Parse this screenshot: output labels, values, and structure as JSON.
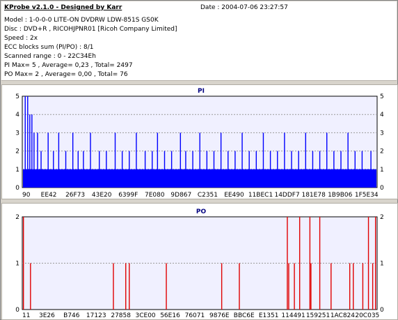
{
  "header": {
    "app_title": "KProbe v2.1.0 - Designed by Karr",
    "date": "Date : 2004-07-06 23:27:57",
    "lines": [
      "Model : 1-0-0-0 LITE-ON DVDRW LDW-851S   GS0K",
      "Disc : DVD+R , RICOHJPNR01 [Ricoh Company Limited]",
      "Speed : 2x",
      "ECC blocks sum (PI/PO) : 8/1",
      "Scanned range : 0 - 22C34Eh",
      "PI Max= 5 , Average= 0,23 , Total= 2497",
      "PO Max= 2 , Average= 0,00 , Total= 76"
    ]
  },
  "colors": {
    "pi": "#0000ff",
    "po": "#e00000",
    "plot_bg": "#f0f0ff",
    "grid": "#999999",
    "title": "#000080"
  },
  "chart_data": [
    {
      "type": "bar",
      "title": "PI",
      "ylim": [
        0,
        5
      ],
      "y_ticks": [
        "0",
        "1",
        "2",
        "3",
        "4",
        "5"
      ],
      "x_tick_labels": [
        "90",
        "EE42",
        "26F73",
        "43E20",
        "6399F",
        "7E080",
        "9D867",
        "C2351",
        "EE490",
        "11BEC1",
        "14DDF7",
        "181E78",
        "1B9B06",
        "1F5E34"
      ],
      "grid": "dashed-horizontal",
      "baseline_value": 1,
      "x_range_hex": [
        "0",
        "22C34E"
      ],
      "spikes": [
        {
          "x": 0.005,
          "v": 5
        },
        {
          "x": 0.012,
          "v": 5
        },
        {
          "x": 0.018,
          "v": 4
        },
        {
          "x": 0.024,
          "v": 4
        },
        {
          "x": 0.03,
          "v": 3
        },
        {
          "x": 0.04,
          "v": 3
        },
        {
          "x": 0.05,
          "v": 2
        },
        {
          "x": 0.07,
          "v": 3
        },
        {
          "x": 0.085,
          "v": 2
        },
        {
          "x": 0.1,
          "v": 3
        },
        {
          "x": 0.12,
          "v": 2
        },
        {
          "x": 0.14,
          "v": 3
        },
        {
          "x": 0.155,
          "v": 2
        },
        {
          "x": 0.17,
          "v": 2
        },
        {
          "x": 0.19,
          "v": 3
        },
        {
          "x": 0.215,
          "v": 2
        },
        {
          "x": 0.235,
          "v": 2
        },
        {
          "x": 0.26,
          "v": 3
        },
        {
          "x": 0.28,
          "v": 2
        },
        {
          "x": 0.3,
          "v": 2
        },
        {
          "x": 0.32,
          "v": 3
        },
        {
          "x": 0.345,
          "v": 2
        },
        {
          "x": 0.365,
          "v": 2
        },
        {
          "x": 0.38,
          "v": 3
        },
        {
          "x": 0.4,
          "v": 2
        },
        {
          "x": 0.42,
          "v": 2
        },
        {
          "x": 0.445,
          "v": 3
        },
        {
          "x": 0.46,
          "v": 2
        },
        {
          "x": 0.48,
          "v": 2
        },
        {
          "x": 0.5,
          "v": 3
        },
        {
          "x": 0.52,
          "v": 2
        },
        {
          "x": 0.54,
          "v": 2
        },
        {
          "x": 0.56,
          "v": 3
        },
        {
          "x": 0.58,
          "v": 2
        },
        {
          "x": 0.6,
          "v": 2
        },
        {
          "x": 0.62,
          "v": 3
        },
        {
          "x": 0.64,
          "v": 2
        },
        {
          "x": 0.66,
          "v": 2
        },
        {
          "x": 0.68,
          "v": 3
        },
        {
          "x": 0.7,
          "v": 2
        },
        {
          "x": 0.72,
          "v": 2
        },
        {
          "x": 0.74,
          "v": 3
        },
        {
          "x": 0.76,
          "v": 2
        },
        {
          "x": 0.78,
          "v": 2
        },
        {
          "x": 0.8,
          "v": 3
        },
        {
          "x": 0.82,
          "v": 2
        },
        {
          "x": 0.84,
          "v": 2
        },
        {
          "x": 0.86,
          "v": 3
        },
        {
          "x": 0.88,
          "v": 2
        },
        {
          "x": 0.9,
          "v": 2
        },
        {
          "x": 0.92,
          "v": 3
        },
        {
          "x": 0.94,
          "v": 2
        },
        {
          "x": 0.96,
          "v": 2
        },
        {
          "x": 0.985,
          "v": 2
        }
      ]
    },
    {
      "type": "bar",
      "title": "PO",
      "ylim": [
        0,
        2
      ],
      "y_ticks": [
        "0",
        "1",
        "2"
      ],
      "x_tick_labels": [
        "11",
        "3E26",
        "B746",
        "17123",
        "27858",
        "3CE00",
        "56E16",
        "76071",
        "9876E",
        "BBC6E",
        "E1351",
        "114491",
        "159251",
        "1AC824",
        "20C035"
      ],
      "grid": "dashed-horizontal",
      "x_range_hex": [
        "0",
        "22C34E"
      ],
      "spikes": [
        {
          "x": 0.0,
          "v": 2
        },
        {
          "x": 0.02,
          "v": 1
        },
        {
          "x": 0.255,
          "v": 1
        },
        {
          "x": 0.29,
          "v": 1
        },
        {
          "x": 0.3,
          "v": 1
        },
        {
          "x": 0.405,
          "v": 1
        },
        {
          "x": 0.562,
          "v": 1
        },
        {
          "x": 0.612,
          "v": 1
        },
        {
          "x": 0.748,
          "v": 2
        },
        {
          "x": 0.752,
          "v": 1
        },
        {
          "x": 0.768,
          "v": 1
        },
        {
          "x": 0.783,
          "v": 2
        },
        {
          "x": 0.812,
          "v": 2
        },
        {
          "x": 0.815,
          "v": 1
        },
        {
          "x": 0.84,
          "v": 2
        },
        {
          "x": 0.872,
          "v": 1
        },
        {
          "x": 0.925,
          "v": 1
        },
        {
          "x": 0.935,
          "v": 1
        },
        {
          "x": 0.962,
          "v": 1
        },
        {
          "x": 0.978,
          "v": 2
        },
        {
          "x": 0.99,
          "v": 1
        },
        {
          "x": 0.998,
          "v": 2
        }
      ]
    }
  ]
}
